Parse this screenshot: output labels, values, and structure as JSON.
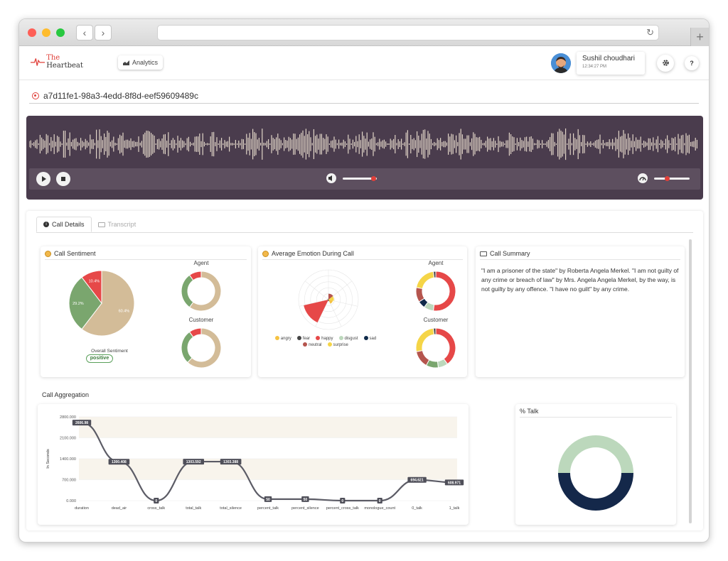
{
  "browser": {
    "back": "‹",
    "forward": "›",
    "reload": "↻",
    "new_tab": "+"
  },
  "header": {
    "logo_prefix": "The",
    "logo_suffix": "Heartbeat",
    "analytics_label": "Analytics",
    "user_name": "Sushil choudhari",
    "user_time": "12:34:27 PM",
    "settings_icon": "gear-icon",
    "help_icon": "question-icon",
    "help_glyph": "?"
  },
  "call": {
    "id": "a7d11fe1-98a3-4edd-8f8d-eef59609489c"
  },
  "player": {
    "volume_level": 0.9,
    "speed_level": 0.35
  },
  "tabs": [
    {
      "label": "Call Details",
      "icon": "info-icon",
      "active": true
    },
    {
      "label": "Transcript",
      "icon": "keyboard-icon",
      "active": false
    }
  ],
  "sentiment": {
    "title": "Call Sentiment",
    "agent_label": "Agent",
    "customer_label": "Customer",
    "overall_label": "Overall Sentiment",
    "overall_value": "positive",
    "pie": [
      {
        "label": "60.4%",
        "value": 60.4,
        "color": "#d3bc98"
      },
      {
        "label": "29.2%",
        "value": 29.2,
        "color": "#7aa66e"
      },
      {
        "label": "10.4%",
        "value": 10.4,
        "color": "#e64848"
      }
    ],
    "agent_donut": [
      {
        "value": 60,
        "color": "#d3bc98"
      },
      {
        "value": 30,
        "color": "#7aa66e"
      },
      {
        "value": 10,
        "color": "#e64848"
      }
    ],
    "customer_donut": [
      {
        "value": 62,
        "color": "#d3bc98"
      },
      {
        "value": 28,
        "color": "#7aa66e"
      },
      {
        "value": 10,
        "color": "#e64848"
      }
    ]
  },
  "emotion": {
    "title": "Average Emotion During Call",
    "agent_label": "Agent",
    "customer_label": "Customer",
    "legend": [
      {
        "label": "angry",
        "color": "#f5c242"
      },
      {
        "label": "fear",
        "color": "#444444"
      },
      {
        "label": "happy",
        "color": "#e64848"
      },
      {
        "label": "disgust",
        "color": "#bcd8bc"
      },
      {
        "label": "sad",
        "color": "#0f2a4a"
      },
      {
        "label": "neutral",
        "color": "#b5554e"
      },
      {
        "label": "surprise",
        "color": "#f5d547"
      }
    ],
    "polar_values": [
      0.15,
      0.05,
      0.85,
      0.04,
      0.03,
      0.2,
      0.18
    ],
    "agent_donut": [
      {
        "value": 52,
        "color": "#e64848"
      },
      {
        "value": 8,
        "color": "#bcd8bc"
      },
      {
        "value": 6,
        "color": "#0f2a4a"
      },
      {
        "value": 12,
        "color": "#b5554e"
      },
      {
        "value": 20,
        "color": "#f5d547"
      },
      {
        "value": 2,
        "color": "#444444"
      }
    ],
    "customer_donut": [
      {
        "value": 40,
        "color": "#e64848"
      },
      {
        "value": 8,
        "color": "#bcd8bc"
      },
      {
        "value": 10,
        "color": "#7aa66e"
      },
      {
        "value": 14,
        "color": "#b5554e"
      },
      {
        "value": 26,
        "color": "#f5d547"
      },
      {
        "value": 2,
        "color": "#444444"
      }
    ]
  },
  "summary": {
    "title": "Call Summary",
    "text": "\"I am a prisoner of the state\" by Roberta Angela Merkel. \"I am not guilty of any crime or breach of law\" by Mrs. Angela Angela Merkel, by the way, is not guilty by any offence. \"I have no guilt\" by any crime."
  },
  "aggregation": {
    "title": "Call Aggregation"
  },
  "chart_data": [
    {
      "type": "line",
      "title": "",
      "xlabel": "",
      "ylabel": "In Seconds",
      "categories": [
        "duration",
        "dead_air",
        "cross_talk",
        "total_talk",
        "total_silence",
        "percent_talk",
        "percent_silence",
        "percent_cross_talk",
        "monologue_count",
        "0_talk",
        "1_talk"
      ],
      "values": [
        2606.98,
        1300.408,
        0,
        1303.592,
        1303.388,
        50,
        50,
        0,
        0,
        694.621,
        608.971
      ],
      "data_labels": [
        "2606.98",
        "1300.408",
        "0",
        "1303.592",
        "1303.388",
        "50",
        "50",
        "0",
        "0",
        "694.621",
        "608.971"
      ],
      "yticks": [
        "0.000",
        "700.000",
        "1400.000",
        "2100.000",
        "2800.000"
      ],
      "ylim": [
        0,
        2800
      ],
      "line_color": "#5c5c66"
    },
    {
      "type": "pie",
      "title": "% Talk",
      "values": [
        50,
        50
      ],
      "colors": [
        "#bcd8bc",
        "#14284a"
      ]
    }
  ]
}
